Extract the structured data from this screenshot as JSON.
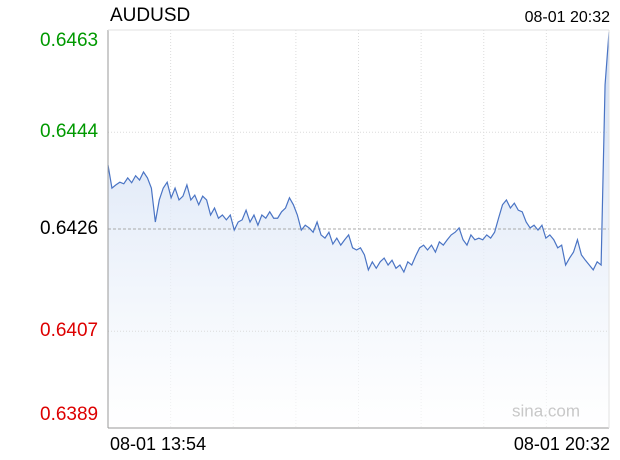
{
  "chart_data": {
    "type": "line",
    "title": "AUDUSD",
    "timestamp": "08-01 20:32",
    "x_labels": [
      "08-01 13:54",
      "08-01 20:32"
    ],
    "ylim": [
      0.6389,
      0.6463
    ],
    "yticks": [
      0.6463,
      0.6444,
      0.6426,
      0.6407,
      0.6389
    ],
    "reference_line": 0.6426,
    "up_color": "#009900",
    "down_color": "#dd0000",
    "color": "#4a74c4",
    "watermark": "sina.com",
    "grid": true,
    "values": [
      0.64379,
      0.64336,
      0.64342,
      0.64347,
      0.64344,
      0.64355,
      0.64346,
      0.64359,
      0.64351,
      0.64366,
      0.64355,
      0.64336,
      0.64273,
      0.64314,
      0.64336,
      0.64347,
      0.64318,
      0.64336,
      0.64314,
      0.64321,
      0.64342,
      0.64314,
      0.64323,
      0.64305,
      0.64321,
      0.64314,
      0.64286,
      0.64299,
      0.6428,
      0.64286,
      0.64277,
      0.64286,
      0.64258,
      0.64273,
      0.64277,
      0.64295,
      0.64273,
      0.64286,
      0.64267,
      0.64286,
      0.6428,
      0.64292,
      0.6428,
      0.6428,
      0.64292,
      0.64299,
      0.64318,
      0.64305,
      0.64286,
      0.64258,
      0.64267,
      0.64262,
      0.64254,
      0.64273,
      0.64249,
      0.64243,
      0.64254,
      0.64232,
      0.64243,
      0.6423,
      0.6424,
      0.64249,
      0.64225,
      0.64221,
      0.64225,
      0.64212,
      0.64184,
      0.64199,
      0.64187,
      0.64199,
      0.64206,
      0.64193,
      0.64202,
      0.64187,
      0.64193,
      0.6418,
      0.64199,
      0.64193,
      0.6421,
      0.64225,
      0.6423,
      0.64221,
      0.6423,
      0.64217,
      0.64236,
      0.6423,
      0.6424,
      0.64249,
      0.64254,
      0.64262,
      0.6424,
      0.6423,
      0.64249,
      0.6424,
      0.64243,
      0.6424,
      0.64249,
      0.64243,
      0.64254,
      0.6428,
      0.64305,
      0.64314,
      0.64299,
      0.64308,
      0.64295,
      0.64292,
      0.64273,
      0.64262,
      0.64267,
      0.64258,
      0.64267,
      0.64243,
      0.64249,
      0.6424,
      0.64225,
      0.6423,
      0.64193,
      0.64206,
      0.64217,
      0.6424,
      0.64212,
      0.64202,
      0.64193,
      0.64184,
      0.64199,
      0.64193,
      0.64528,
      0.64626
    ]
  }
}
